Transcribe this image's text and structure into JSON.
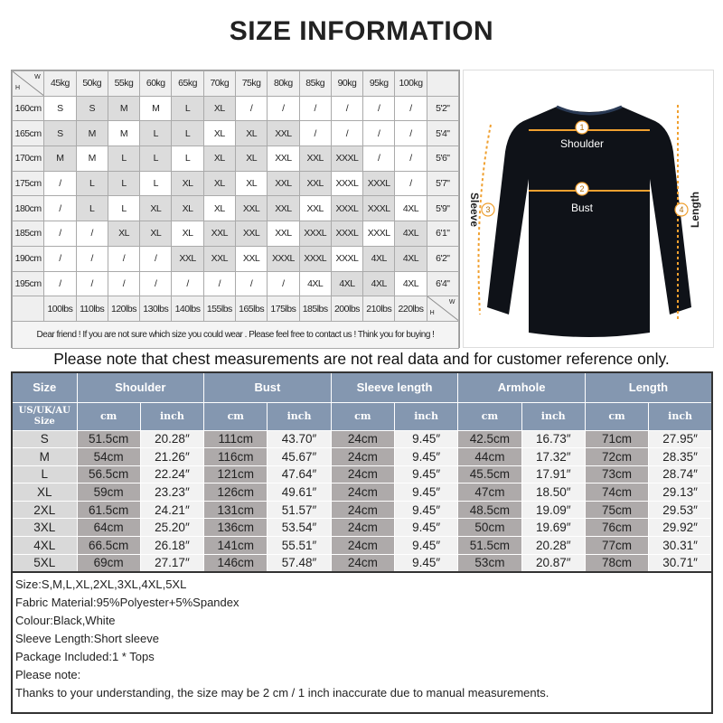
{
  "title": "SIZE INFORMATION",
  "weight_height_chart": {
    "corner_h": "H",
    "corner_w": "W",
    "weights_kg": [
      "45kg",
      "50kg",
      "55kg",
      "60kg",
      "65kg",
      "70kg",
      "75kg",
      "80kg",
      "85kg",
      "90kg",
      "95kg",
      "100kg"
    ],
    "rows": [
      {
        "height": "160cm",
        "ft": "5'2\"",
        "sizes": [
          "S",
          "S",
          "M",
          "M",
          "L",
          "XL",
          "/",
          "/",
          "/",
          "/",
          "/",
          "/"
        ]
      },
      {
        "height": "165cm",
        "ft": "5'4\"",
        "sizes": [
          "S",
          "M",
          "M",
          "L",
          "L",
          "XL",
          "XL",
          "XXL",
          "/",
          "/",
          "/",
          "/"
        ]
      },
      {
        "height": "170cm",
        "ft": "5'6\"",
        "sizes": [
          "M",
          "M",
          "L",
          "L",
          "L",
          "XL",
          "XL",
          "XXL",
          "XXL",
          "XXXL",
          "/",
          "/"
        ]
      },
      {
        "height": "175cm",
        "ft": "5'7\"",
        "sizes": [
          "/",
          "L",
          "L",
          "L",
          "XL",
          "XL",
          "XL",
          "XXL",
          "XXL",
          "XXXL",
          "XXXL",
          "/"
        ]
      },
      {
        "height": "180cm",
        "ft": "5'9\"",
        "sizes": [
          "/",
          "L",
          "L",
          "XL",
          "XL",
          "XL",
          "XXL",
          "XXL",
          "XXL",
          "XXXL",
          "XXXL",
          "4XL"
        ]
      },
      {
        "height": "185cm",
        "ft": "6'1\"",
        "sizes": [
          "/",
          "/",
          "XL",
          "XL",
          "XL",
          "XXL",
          "XXL",
          "XXL",
          "XXXL",
          "XXXL",
          "XXXL",
          "4XL"
        ]
      },
      {
        "height": "190cm",
        "ft": "6'2\"",
        "sizes": [
          "/",
          "/",
          "/",
          "/",
          "XXL",
          "XXL",
          "XXL",
          "XXXL",
          "XXXL",
          "XXXL",
          "4XL",
          "4XL"
        ]
      },
      {
        "height": "195cm",
        "ft": "6'4\"",
        "sizes": [
          "/",
          "/",
          "/",
          "/",
          "/",
          "/",
          "/",
          "/",
          "4XL",
          "4XL",
          "4XL",
          "4XL"
        ]
      }
    ],
    "weights_lbs": [
      "100lbs",
      "110lbs",
      "120lbs",
      "130lbs",
      "140lbs",
      "155lbs",
      "165lbs",
      "175lbs",
      "185lbs",
      "200lbs",
      "210lbs",
      "220lbs"
    ],
    "footnote": "Dear friend ! If you are not sure which size you could wear . Please feel free to contact us ! Think you for buying !"
  },
  "diagram": {
    "labels": [
      {
        "num": "1",
        "text": "Shoulder"
      },
      {
        "num": "2",
        "text": "Bust"
      },
      {
        "num": "3",
        "text": "Sleeve"
      },
      {
        "num": "4",
        "text": "Length"
      }
    ],
    "garment_color": "#0f1218",
    "arrow_color": "#f0a030"
  },
  "note": "Please note that chest measurements  are not real data and for customer reference only.",
  "size_table": {
    "header_color": "#8497b0",
    "size_label": "Size",
    "size_sub_label": "US/UK/AU Size",
    "groups": [
      "Shoulder",
      "Bust",
      "Sleeve length",
      "Armhole",
      "Length"
    ],
    "unit_cm": "cm",
    "unit_inch": "inch",
    "rows": [
      {
        "size": "S",
        "values": [
          "51.5cm",
          "20.28″",
          "111cm",
          "43.70″",
          "24cm",
          "9.45″",
          "42.5cm",
          "16.73″",
          "71cm",
          "27.95″"
        ]
      },
      {
        "size": "M",
        "values": [
          "54cm",
          "21.26″",
          "116cm",
          "45.67″",
          "24cm",
          "9.45″",
          "44cm",
          "17.32″",
          "72cm",
          "28.35″"
        ]
      },
      {
        "size": "L",
        "values": [
          "56.5cm",
          "22.24″",
          "121cm",
          "47.64″",
          "24cm",
          "9.45″",
          "45.5cm",
          "17.91″",
          "73cm",
          "28.74″"
        ]
      },
      {
        "size": "XL",
        "values": [
          "59cm",
          "23.23″",
          "126cm",
          "49.61″",
          "24cm",
          "9.45″",
          "47cm",
          "18.50″",
          "74cm",
          "29.13″"
        ]
      },
      {
        "size": "2XL",
        "values": [
          "61.5cm",
          "24.21″",
          "131cm",
          "51.57″",
          "24cm",
          "9.45″",
          "48.5cm",
          "19.09″",
          "75cm",
          "29.53″"
        ]
      },
      {
        "size": "3XL",
        "values": [
          "64cm",
          "25.20″",
          "136cm",
          "53.54″",
          "24cm",
          "9.45″",
          "50cm",
          "19.69″",
          "76cm",
          "29.92″"
        ]
      },
      {
        "size": "4XL",
        "values": [
          "66.5cm",
          "26.18″",
          "141cm",
          "55.51″",
          "24cm",
          "9.45″",
          "51.5cm",
          "20.28″",
          "77cm",
          "30.31″"
        ]
      },
      {
        "size": "5XL",
        "values": [
          "69cm",
          "27.17″",
          "146cm",
          "57.48″",
          "24cm",
          "9.45″",
          "53cm",
          "20.87″",
          "78cm",
          "30.71″"
        ]
      }
    ]
  },
  "info_lines": [
    "Size:S,M,L,XL,2XL,3XL,4XL,5XL",
    "Fabric Material:95%Polyester+5%Spandex",
    "Colour:Black,White",
    "Sleeve Length:Short sleeve",
    "Package Included:1 * Tops",
    "Please note:",
    "Thanks to your understanding, the size may be 2 cm / 1 inch inaccurate due to manual measurements."
  ]
}
